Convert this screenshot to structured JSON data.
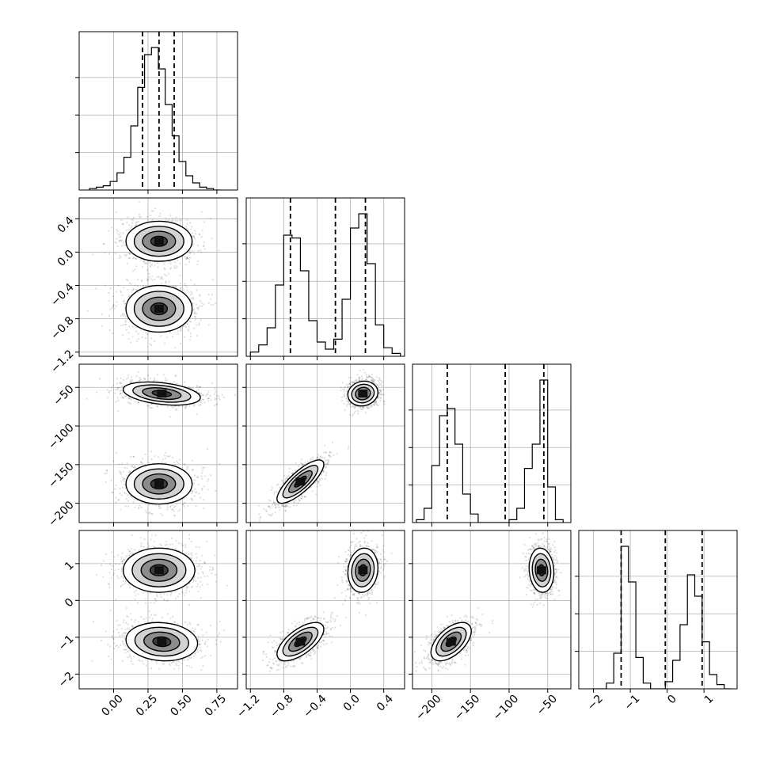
{
  "chart_data": {
    "type": "corner",
    "n_params": 4,
    "params": [
      {
        "range": [
          -0.25,
          0.9
        ],
        "ticks": [
          0.0,
          0.25,
          0.5,
          0.75
        ],
        "ticklabels": [
          "0.00",
          "0.25",
          "0.50",
          "0.75"
        ],
        "quantiles": [
          0.21,
          0.33,
          0.44
        ]
      },
      {
        "range": [
          -1.25,
          0.65
        ],
        "ticks": [
          -1.2,
          -0.8,
          -0.4,
          0.0,
          0.4
        ],
        "ticklabels": [
          "−1.2",
          "−0.8",
          "−0.4",
          "0.0",
          "0.4"
        ],
        "quantiles": [
          -0.72,
          -0.18,
          0.18
        ]
      },
      {
        "range": [
          -225,
          -20
        ],
        "ticks": [
          -200,
          -150,
          -100,
          -50
        ],
        "ticklabels": [
          "−200",
          "−150",
          "−100",
          "−50"
        ],
        "quantiles": [
          -180,
          -105,
          -55
        ]
      },
      {
        "range": [
          -2.4,
          1.9
        ],
        "ticks": [
          -2,
          -1,
          0,
          1
        ],
        "ticklabels": [
          "−2",
          "−1",
          "0",
          "1"
        ],
        "quantiles": [
          -1.25,
          -0.05,
          0.95
        ]
      }
    ],
    "histograms": [
      {
        "param": 0,
        "x": [
          -0.15,
          -0.1,
          -0.05,
          0.0,
          0.05,
          0.1,
          0.15,
          0.2,
          0.25,
          0.3,
          0.35,
          0.4,
          0.45,
          0.5,
          0.55,
          0.6,
          0.65,
          0.7,
          0.75
        ],
        "counts": [
          0.01,
          0.02,
          0.03,
          0.06,
          0.12,
          0.23,
          0.45,
          0.72,
          0.95,
          1.0,
          0.85,
          0.6,
          0.38,
          0.2,
          0.1,
          0.05,
          0.02,
          0.01,
          0.0
        ]
      },
      {
        "param": 1,
        "x": [
          -1.15,
          -1.05,
          -0.95,
          -0.85,
          -0.75,
          -0.65,
          -0.55,
          -0.45,
          -0.35,
          -0.25,
          -0.15,
          -0.05,
          0.05,
          0.15,
          0.25,
          0.35,
          0.45,
          0.55
        ],
        "counts": [
          0.03,
          0.08,
          0.2,
          0.5,
          0.85,
          0.83,
          0.6,
          0.25,
          0.1,
          0.05,
          0.12,
          0.4,
          0.9,
          1.0,
          0.65,
          0.22,
          0.06,
          0.02
        ]
      },
      {
        "param": 2,
        "x": [
          -215,
          -205,
          -195,
          -185,
          -175,
          -165,
          -155,
          -145,
          -135,
          -125,
          -115,
          -105,
          -95,
          -85,
          -75,
          -65,
          -55,
          -45,
          -35
        ],
        "counts": [
          0.02,
          0.1,
          0.4,
          0.75,
          0.8,
          0.55,
          0.2,
          0.06,
          0.0,
          0.0,
          0.0,
          0.0,
          0.02,
          0.1,
          0.38,
          0.55,
          1.0,
          0.25,
          0.02
        ]
      },
      {
        "param": 3,
        "x": [
          -1.95,
          -1.75,
          -1.55,
          -1.35,
          -1.15,
          -0.95,
          -0.75,
          -0.55,
          -0.35,
          -0.15,
          0.05,
          0.25,
          0.45,
          0.65,
          0.85,
          1.05,
          1.25,
          1.45,
          1.65
        ],
        "counts": [
          0.0,
          0.0,
          0.04,
          0.25,
          1.0,
          0.75,
          0.22,
          0.04,
          0.0,
          0.0,
          0.05,
          0.2,
          0.45,
          0.8,
          0.65,
          0.33,
          0.1,
          0.03,
          0.0
        ]
      }
    ],
    "pairs": [
      {
        "x": 0,
        "y": 1,
        "clusters": [
          {
            "center": [
              0.33,
              0.13
            ],
            "sd": [
              0.12,
              0.12
            ],
            "rho": 0.0,
            "weight": 0.5
          },
          {
            "center": [
              0.33,
              -0.68
            ],
            "sd": [
              0.12,
              0.14
            ],
            "rho": 0.0,
            "weight": 0.5
          }
        ]
      },
      {
        "x": 0,
        "y": 2,
        "clusters": [
          {
            "center": [
              0.35,
              -58
            ],
            "sd": [
              0.14,
              7.5
            ],
            "rho": -0.35,
            "weight": 0.5
          },
          {
            "center": [
              0.33,
              -175
            ],
            "sd": [
              0.12,
              13
            ],
            "rho": 0.0,
            "weight": 0.5
          }
        ]
      },
      {
        "x": 1,
        "y": 2,
        "clusters": [
          {
            "center": [
              0.15,
              -58
            ],
            "sd": [
              0.09,
              8
            ],
            "rho": 0.1,
            "weight": 0.5
          },
          {
            "center": [
              -0.6,
              -172
            ],
            "sd": [
              0.14,
              14
            ],
            "rho": 0.8,
            "weight": 0.5
          }
        ]
      },
      {
        "x": 0,
        "y": 3,
        "clusters": [
          {
            "center": [
              0.33,
              0.82
            ],
            "sd": [
              0.13,
              0.3
            ],
            "rho": 0.0,
            "weight": 0.5
          },
          {
            "center": [
              0.35,
              -1.12
            ],
            "sd": [
              0.13,
              0.26
            ],
            "rho": -0.1,
            "weight": 0.5
          }
        ]
      },
      {
        "x": 1,
        "y": 3,
        "clusters": [
          {
            "center": [
              0.15,
              0.82
            ],
            "sd": [
              0.09,
              0.3
            ],
            "rho": 0.1,
            "weight": 0.5
          },
          {
            "center": [
              -0.6,
              -1.12
            ],
            "sd": [
              0.14,
              0.26
            ],
            "rho": 0.65,
            "weight": 0.5
          }
        ]
      },
      {
        "x": 2,
        "y": 3,
        "clusters": [
          {
            "center": [
              -58,
              0.82
            ],
            "sd": [
              8,
              0.3
            ],
            "rho": -0.1,
            "weight": 0.5
          },
          {
            "center": [
              -175,
              -1.12
            ],
            "sd": [
              13,
              0.26
            ],
            "rho": 0.55,
            "weight": 0.5
          }
        ]
      }
    ],
    "contour_levels_sigma": [
      0.5,
      1.0,
      1.5,
      2.0
    ],
    "grid": true,
    "colors": {
      "points": "#000000",
      "lines": "#000000",
      "grid": "#b0b0b0"
    }
  }
}
